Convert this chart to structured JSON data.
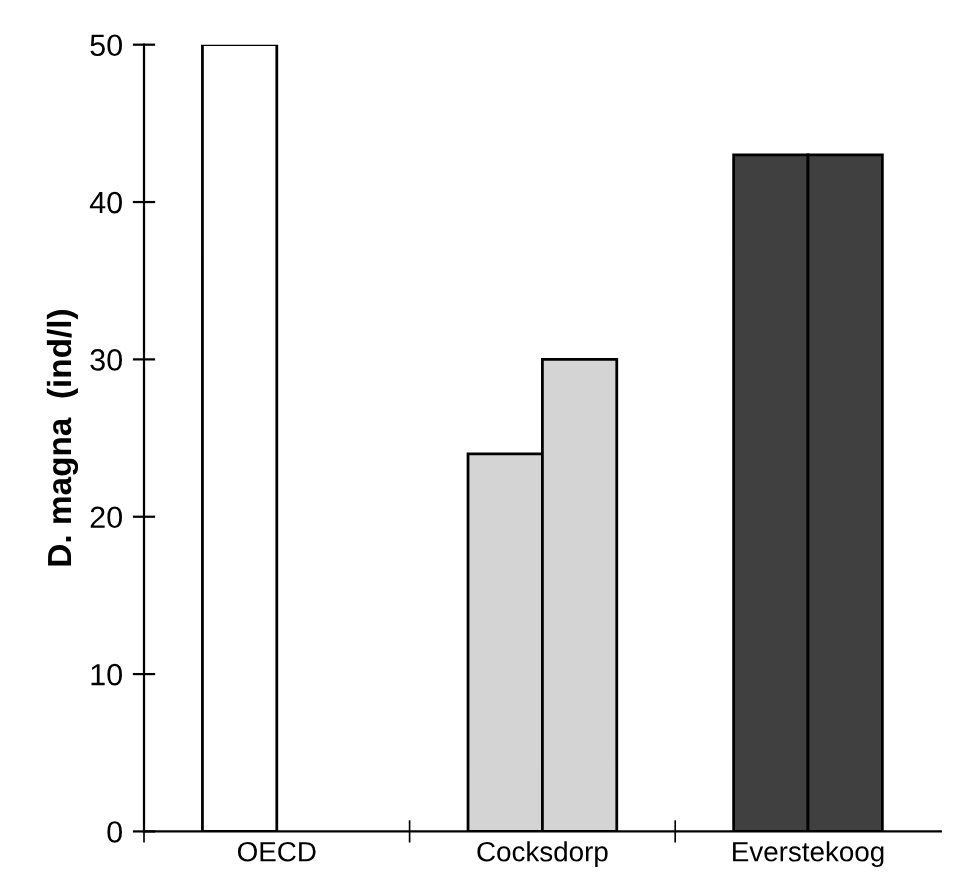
{
  "chart_data": {
    "type": "bar",
    "ylabel": "D. magna  (ind/l)",
    "categories": [
      "OECD",
      "Cocksdorp",
      "Everstekoog"
    ],
    "series": [
      {
        "colors": [
          "#ffffff",
          "#d4d4d4",
          "#404040"
        ],
        "values": [
          50,
          24,
          43
        ]
      },
      {
        "colors": [
          "#ffffff",
          "#d4d4d4",
          "#404040"
        ],
        "values": [
          null,
          30,
          43
        ]
      }
    ],
    "ylim": [
      0,
      50
    ],
    "yticks": [
      0,
      10,
      20,
      30,
      40,
      50
    ],
    "grid": false,
    "legend": false
  }
}
